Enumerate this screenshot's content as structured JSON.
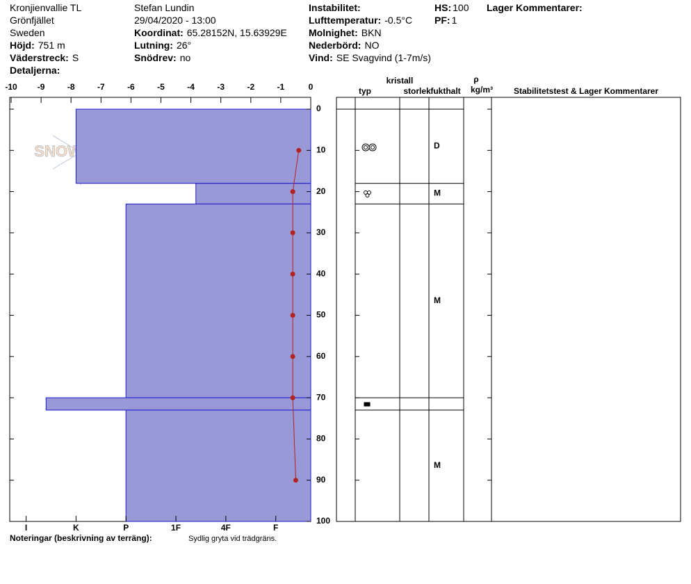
{
  "header": {
    "col1": [
      {
        "value": "Kronjienvallie TL"
      },
      {
        "value": "Grönfjället"
      },
      {
        "value": "Sweden"
      },
      {
        "label": "Höjd:",
        "value": "751 m"
      },
      {
        "label": "Väderstreck:",
        "value": "S"
      },
      {
        "label": "Detaljerna:"
      }
    ],
    "col2": [
      {
        "value": "Stefan Lundin"
      },
      {
        "value": "29/04/2020 - 13:00"
      },
      {
        "label": "Koordinat:",
        "value": "65.28152N, 15.63929E"
      },
      {
        "label": "Lutning:",
        "value": "26°"
      },
      {
        "label": "Snödrev:",
        "value": "no"
      }
    ],
    "col3": [
      {
        "label": "Instabilitet:"
      },
      {
        "label": "Lufttemperatur:",
        "value": "-0.5°C"
      },
      {
        "label": "Molnighet:",
        "value": "BKN"
      },
      {
        "label": "Nederbörd:",
        "value": "NO"
      },
      {
        "label": "Vind:",
        "value": "SE Svagvind (1-7m/s)"
      }
    ],
    "col4": [
      {
        "label": "HS:",
        "value": 100
      },
      {
        "label": "PF:",
        "value": 1
      }
    ],
    "col5": [
      {
        "label": "Lager Kommentarer:"
      }
    ]
  },
  "chart_data": {
    "type": "snow-profile",
    "logo": "SNOWPILOT",
    "ylim": [
      0,
      100
    ],
    "yticks": [
      0,
      10,
      20,
      30,
      40,
      50,
      60,
      70,
      80,
      90,
      100
    ],
    "temperature": {
      "xlim": [
        -10,
        0
      ],
      "xticks": [
        -10,
        -9,
        -8,
        -7,
        -6,
        -5,
        -4,
        -3,
        -2,
        -1,
        0
      ],
      "depth": [
        10,
        20,
        30,
        40,
        50,
        60,
        70,
        90
      ],
      "values": [
        -0.4,
        -0.6,
        -0.6,
        -0.6,
        -0.6,
        -0.6,
        -0.6,
        -0.5
      ],
      "color": "#b22222"
    },
    "hardness": {
      "xlim": [
        0.3,
        6.3
      ],
      "xticks": [
        {
          "value": 6,
          "label": "I"
        },
        {
          "value": 5,
          "label": "K"
        },
        {
          "value": 4,
          "label": "P"
        },
        {
          "value": 3,
          "label": "1F"
        },
        {
          "value": 2,
          "label": "4F"
        },
        {
          "value": 1,
          "label": "F"
        }
      ]
    },
    "layers": {
      "top": [
        0,
        18,
        23,
        70,
        73
      ],
      "bottom": [
        18,
        23,
        70,
        73,
        100
      ],
      "hardness": [
        5,
        2.6,
        4,
        5.6,
        4
      ],
      "moisture": [
        "D",
        "M",
        "M",
        null,
        "M"
      ],
      "color": "#9999d8"
    },
    "table": {
      "kristall": "kristall",
      "typ": "typ",
      "storlek": "storlek",
      "fukthalt": "fukthalt",
      "rho": "ρ",
      "density_unit": "kg/m³",
      "comments": "Stabilitetstest & Lager Kommentarer"
    },
    "notes": {
      "label": "Noteringar (beskrivning av terräng):",
      "text": "Sydlig gryta vid trädgräns."
    }
  }
}
